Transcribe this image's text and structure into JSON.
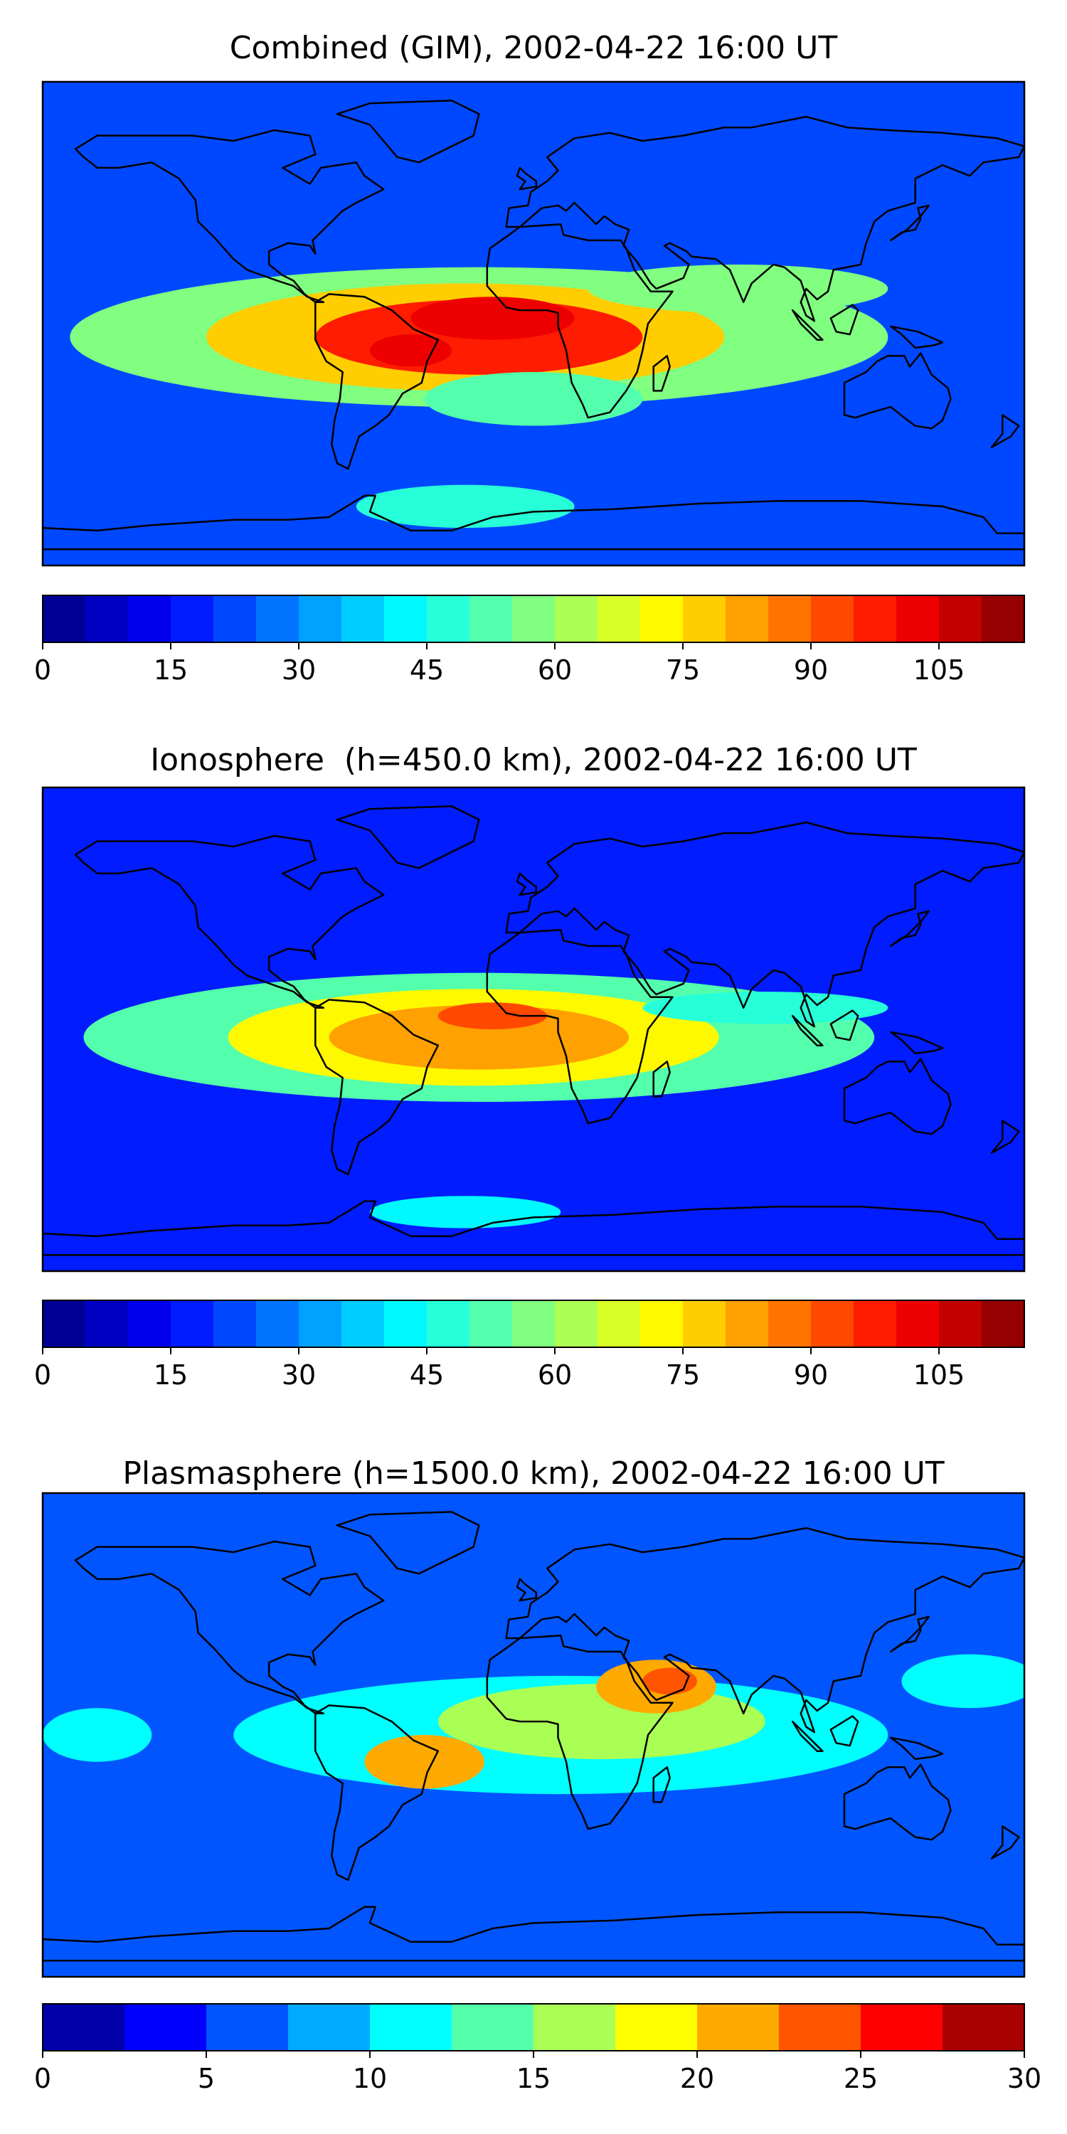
{
  "panels": [
    {
      "title": "Combined (GIM), 2002-04-22 16:00 UT",
      "colorbar": {
        "min": 0,
        "max": 115,
        "step": 5,
        "ticks": [
          "0",
          "15",
          "30",
          "45",
          "60",
          "75",
          "90",
          "105"
        ],
        "tick_values": [
          0,
          15,
          30,
          45,
          60,
          75,
          90,
          105
        ]
      },
      "blobs": [
        {
          "lon": -20,
          "lat": -5,
          "rx": 150,
          "ry": 26,
          "level": 58
        },
        {
          "lon": -25,
          "lat": -5,
          "rx": 95,
          "ry": 20,
          "level": 78
        },
        {
          "lon": -20,
          "lat": -5,
          "rx": 60,
          "ry": 14,
          "level": 95
        },
        {
          "lon": -15,
          "lat": 2,
          "rx": 30,
          "ry": 8,
          "level": 102
        },
        {
          "lon": -45,
          "lat": -10,
          "rx": 15,
          "ry": 6,
          "level": 100
        },
        {
          "lon": 75,
          "lat": 13,
          "rx": 55,
          "ry": 9,
          "level": 55
        },
        {
          "lon": 0,
          "lat": -28,
          "rx": 40,
          "ry": 10,
          "level": 52
        },
        {
          "lon": -25,
          "lat": -68,
          "rx": 40,
          "ry": 8,
          "level": 45
        }
      ],
      "base_level": 22
    },
    {
      "title": "Ionosphere  (h=450.0 km), 2002-04-22 16:00 UT",
      "colorbar": {
        "min": 0,
        "max": 115,
        "step": 5,
        "ticks": [
          "0",
          "15",
          "30",
          "45",
          "60",
          "75",
          "90",
          "105"
        ],
        "tick_values": [
          0,
          15,
          30,
          45,
          60,
          75,
          90,
          105
        ]
      },
      "blobs": [
        {
          "lon": -20,
          "lat": -3,
          "rx": 145,
          "ry": 24,
          "level": 52
        },
        {
          "lon": -22,
          "lat": -3,
          "rx": 90,
          "ry": 18,
          "level": 72
        },
        {
          "lon": -20,
          "lat": -3,
          "rx": 55,
          "ry": 12,
          "level": 82
        },
        {
          "lon": -15,
          "lat": 5,
          "rx": 20,
          "ry": 5,
          "level": 90
        },
        {
          "lon": 85,
          "lat": 8,
          "rx": 45,
          "ry": 6,
          "level": 48
        },
        {
          "lon": -25,
          "lat": -68,
          "rx": 35,
          "ry": 6,
          "level": 40
        }
      ],
      "base_level": 17
    },
    {
      "title": "Plasmasphere (h=1500.0 km), 2002-04-22 16:00 UT",
      "colorbar": {
        "min": 0,
        "max": 30,
        "step": 2.5,
        "ticks": [
          "0",
          "5",
          "10",
          "15",
          "20",
          "25",
          "30"
        ],
        "tick_values": [
          0,
          5,
          10,
          15,
          20,
          25,
          30
        ]
      },
      "blobs": [
        {
          "lon": 10,
          "lat": 0,
          "rx": 120,
          "ry": 22,
          "level": 12
        },
        {
          "lon": 25,
          "lat": 5,
          "rx": 60,
          "ry": 14,
          "level": 16
        },
        {
          "lon": -40,
          "lat": -10,
          "rx": 22,
          "ry": 10,
          "level": 21
        },
        {
          "lon": 45,
          "lat": 18,
          "rx": 22,
          "ry": 10,
          "level": 22
        },
        {
          "lon": 50,
          "lat": 20,
          "rx": 10,
          "ry": 5,
          "level": 24
        },
        {
          "lon": -160,
          "lat": 0,
          "rx": 20,
          "ry": 10,
          "level": 11
        },
        {
          "lon": 160,
          "lat": 20,
          "rx": 25,
          "ry": 10,
          "level": 11
        }
      ],
      "base_level": 7
    }
  ]
}
